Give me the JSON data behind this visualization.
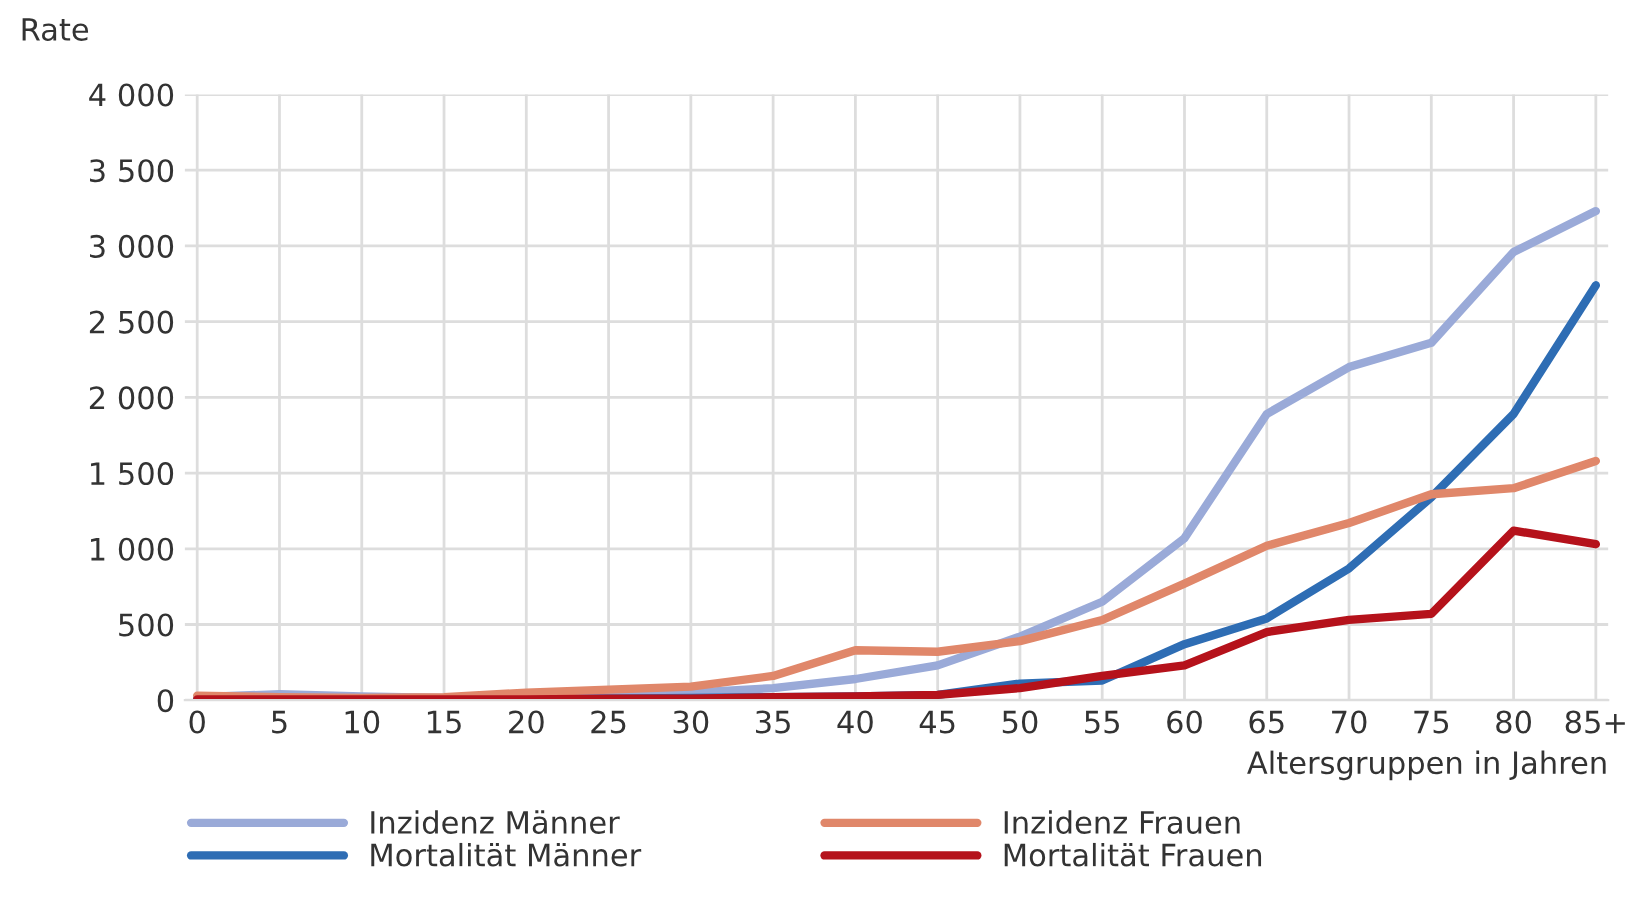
{
  "chart_data": {
    "type": "line",
    "ylabel": "Rate",
    "xlabel": "Altersgruppen in Jahren",
    "categories": [
      "0",
      "5",
      "10",
      "15",
      "20",
      "25",
      "30",
      "35",
      "40",
      "45",
      "50",
      "55",
      "60",
      "65",
      "70",
      "75",
      "80",
      "85+"
    ],
    "series": [
      {
        "name": "Inzidenz Männer",
        "color": "#9aaad8",
        "values": [
          20,
          40,
          25,
          15,
          20,
          40,
          50,
          80,
          140,
          230,
          420,
          650,
          1070,
          1890,
          2200,
          2360,
          2960,
          3230
        ]
      },
      {
        "name": "Mortalität Männer",
        "color": "#2e6db4",
        "values": [
          5,
          5,
          5,
          5,
          5,
          10,
          15,
          20,
          25,
          35,
          110,
          130,
          370,
          540,
          870,
          1340,
          1890,
          2740
        ]
      },
      {
        "name": "Inzidenz Frauen",
        "color": "#e0876a",
        "values": [
          30,
          20,
          15,
          20,
          50,
          70,
          90,
          160,
          330,
          320,
          390,
          530,
          770,
          1020,
          1170,
          1360,
          1400,
          1580
        ]
      },
      {
        "name": "Mortalität Frauen",
        "color": "#b5121b",
        "values": [
          5,
          5,
          5,
          5,
          5,
          10,
          10,
          20,
          25,
          35,
          80,
          160,
          230,
          450,
          530,
          570,
          1120,
          1030
        ]
      }
    ],
    "ylim": [
      0,
      4000
    ],
    "yticks": [
      0,
      {
        "value": 500,
        "label": "500"
      },
      {
        "value": 1000,
        "label": "1 000"
      },
      {
        "value": 1500,
        "label": "1 500"
      },
      {
        "value": 2000,
        "label": "2 000"
      },
      {
        "value": 2500,
        "label": "2 500"
      },
      {
        "value": 3000,
        "label": "3 000"
      },
      {
        "value": 3500,
        "label": "3 500"
      },
      {
        "value": 4000,
        "label": "4 000"
      }
    ],
    "grid": true,
    "legend": "bottom left",
    "marker": "none",
    "line_style": "solid"
  }
}
